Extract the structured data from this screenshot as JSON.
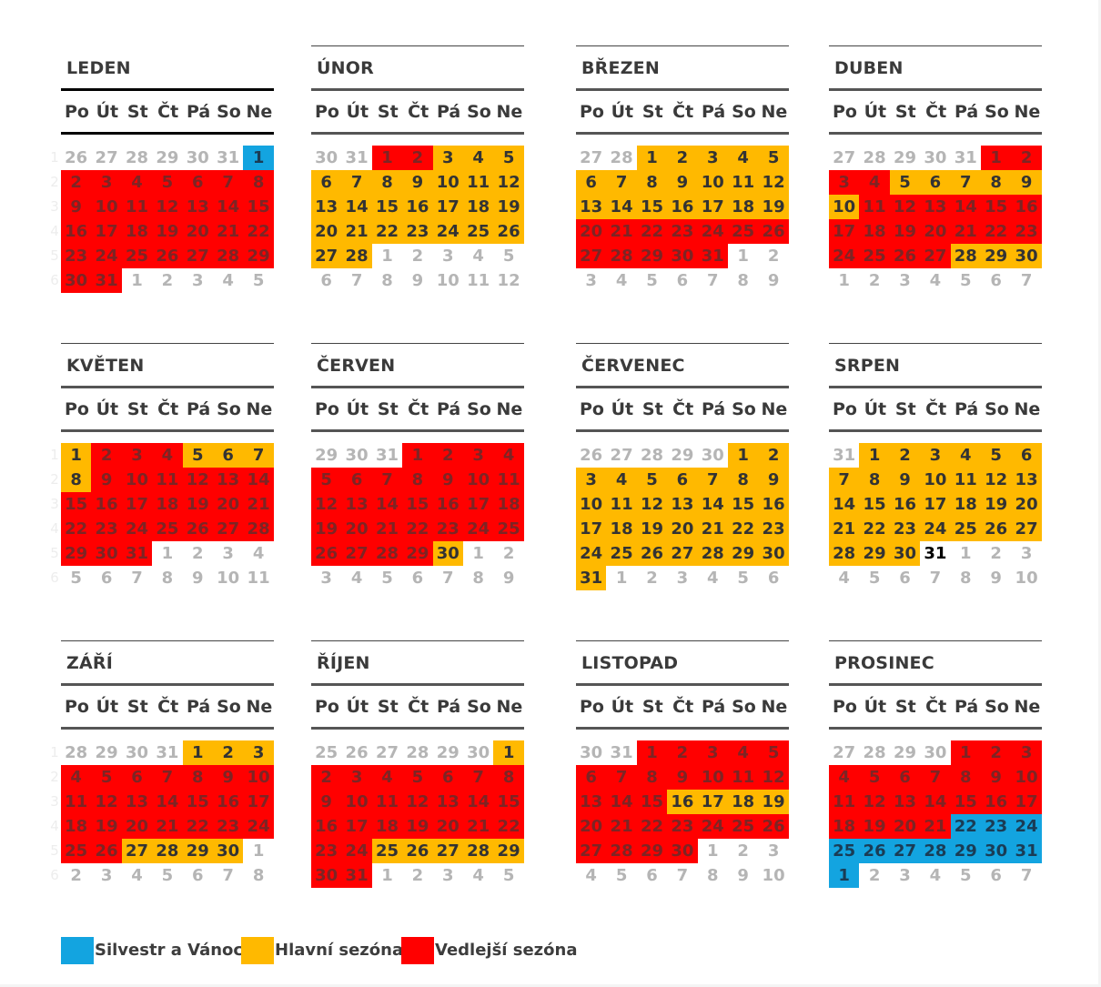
{
  "weekdays": [
    "Po",
    "Út",
    "St",
    "Čt",
    "Pá",
    "So",
    "Ne"
  ],
  "week_numbers": [
    "1",
    "2",
    "3",
    "4",
    "5",
    "6"
  ],
  "colors": {
    "red": "#ff0000",
    "yellow": "#ffb900",
    "blue": "#13a4e0"
  },
  "legend": [
    {
      "label": "Silvestr a Vánoce",
      "color": "blue"
    },
    {
      "label": "Hlavní sezóna",
      "color": "yellow"
    },
    {
      "label": "Vedlejší sezóna",
      "color": "red"
    }
  ],
  "months": [
    {
      "name": "LEDEN",
      "today": null,
      "days": [
        [
          "26o",
          "27o",
          "28o",
          "29o",
          "30o",
          "31o",
          "1b"
        ],
        [
          "2r",
          "3r",
          "4r",
          "5r",
          "6r",
          "7r",
          "8r"
        ],
        [
          "9r",
          "10r",
          "11r",
          "12r",
          "13r",
          "14r",
          "15r"
        ],
        [
          "16r",
          "17r",
          "18r",
          "19r",
          "20r",
          "21r",
          "22r"
        ],
        [
          "23r",
          "24r",
          "25r",
          "26r",
          "27r",
          "28r",
          "29r"
        ],
        [
          "30r",
          "31r",
          "1o",
          "2o",
          "3o",
          "4o",
          "5o"
        ]
      ]
    },
    {
      "name": "ÚNOR",
      "today": null,
      "days": [
        [
          "30o",
          "31o",
          "1r",
          "2r",
          "3y",
          "4y",
          "5y"
        ],
        [
          "6y",
          "7y",
          "8y",
          "9y",
          "10y",
          "11y",
          "12y"
        ],
        [
          "13y",
          "14y",
          "15y",
          "16y",
          "17y",
          "18y",
          "19y"
        ],
        [
          "20y",
          "21y",
          "22y",
          "23y",
          "24y",
          "25y",
          "26y"
        ],
        [
          "27y",
          "28y",
          "1o",
          "2o",
          "3o",
          "4o",
          "5o"
        ],
        [
          "6o",
          "7o",
          "8o",
          "9o",
          "10o",
          "11o",
          "12o"
        ]
      ]
    },
    {
      "name": "BŘEZEN",
      "today": null,
      "days": [
        [
          "27o",
          "28o",
          "1y",
          "2y",
          "3y",
          "4y",
          "5y"
        ],
        [
          "6y",
          "7y",
          "8y",
          "9y",
          "10y",
          "11y",
          "12y"
        ],
        [
          "13y",
          "14y",
          "15y",
          "16y",
          "17y",
          "18y",
          "19y"
        ],
        [
          "20r",
          "21r",
          "22r",
          "23r",
          "24r",
          "25r",
          "26r"
        ],
        [
          "27r",
          "28r",
          "29r",
          "30r",
          "31r",
          "1o",
          "2o"
        ],
        [
          "3o",
          "4o",
          "5o",
          "6o",
          "7o",
          "8o",
          "9o"
        ]
      ]
    },
    {
      "name": "DUBEN",
      "today": null,
      "days": [
        [
          "27o",
          "28o",
          "29o",
          "30o",
          "31o",
          "1r",
          "2r"
        ],
        [
          "3r",
          "4r",
          "5y",
          "6y",
          "7y",
          "8y",
          "9y"
        ],
        [
          "10y",
          "11r",
          "12r",
          "13r",
          "14r",
          "15r",
          "16r"
        ],
        [
          "17r",
          "18r",
          "19r",
          "20r",
          "21r",
          "22r",
          "23r"
        ],
        [
          "24r",
          "25r",
          "26r",
          "27r",
          "28y",
          "29y",
          "30y"
        ],
        [
          "1o",
          "2o",
          "3o",
          "4o",
          "5o",
          "6o",
          "7o"
        ]
      ]
    },
    {
      "name": "KVĚTEN",
      "today": null,
      "days": [
        [
          "1y",
          "2r",
          "3r",
          "4r",
          "5y",
          "6y",
          "7y"
        ],
        [
          "8y",
          "9r",
          "10r",
          "11r",
          "12r",
          "13r",
          "14r"
        ],
        [
          "15r",
          "16r",
          "17r",
          "18r",
          "19r",
          "20r",
          "21r"
        ],
        [
          "22r",
          "23r",
          "24r",
          "25r",
          "26r",
          "27r",
          "28r"
        ],
        [
          "29r",
          "30r",
          "31r",
          "1o",
          "2o",
          "3o",
          "4o"
        ],
        [
          "5o",
          "6o",
          "7o",
          "8o",
          "9o",
          "10o",
          "11o"
        ]
      ]
    },
    {
      "name": "ČERVEN",
      "today": null,
      "days": [
        [
          "29o",
          "30o",
          "31o",
          "1r",
          "2r",
          "3r",
          "4r"
        ],
        [
          "5r",
          "6r",
          "7r",
          "8r",
          "9r",
          "10r",
          "11r"
        ],
        [
          "12r",
          "13r",
          "14r",
          "15r",
          "16r",
          "17r",
          "18r"
        ],
        [
          "19r",
          "20r",
          "21r",
          "22r",
          "23r",
          "24r",
          "25r"
        ],
        [
          "26r",
          "27r",
          "28r",
          "29r",
          "30y",
          "1o",
          "2o"
        ],
        [
          "3o",
          "4o",
          "5o",
          "6o",
          "7o",
          "8o",
          "9o"
        ]
      ]
    },
    {
      "name": "ČERVENEC",
      "today": null,
      "days": [
        [
          "26o",
          "27o",
          "28o",
          "29o",
          "30o",
          "1y",
          "2y"
        ],
        [
          "3y",
          "4y",
          "5y",
          "6y",
          "7y",
          "8y",
          "9y"
        ],
        [
          "10y",
          "11y",
          "12y",
          "13y",
          "14y",
          "15y",
          "16y"
        ],
        [
          "17y",
          "18y",
          "19y",
          "20y",
          "21y",
          "22y",
          "23y"
        ],
        [
          "24y",
          "25y",
          "26y",
          "27y",
          "28y",
          "29y",
          "30y"
        ],
        [
          "31y",
          "1o",
          "2o",
          "3o",
          "4o",
          "5o",
          "6o"
        ]
      ]
    },
    {
      "name": "SRPEN",
      "today": "31",
      "days": [
        [
          "31o",
          "1y",
          "2y",
          "3y",
          "4y",
          "5y",
          "6y"
        ],
        [
          "7y",
          "8y",
          "9y",
          "10y",
          "11y",
          "12y",
          "13y"
        ],
        [
          "14y",
          "15y",
          "16y",
          "17y",
          "18y",
          "19y",
          "20y"
        ],
        [
          "21y",
          "22y",
          "23y",
          "24y",
          "25y",
          "26y",
          "27y"
        ],
        [
          "28y",
          "29y",
          "30y",
          "31t",
          "1o",
          "2o",
          "3o"
        ],
        [
          "4o",
          "5o",
          "6o",
          "7o",
          "8o",
          "9o",
          "10o"
        ]
      ]
    },
    {
      "name": "ZÁŘÍ",
      "today": null,
      "days": [
        [
          "28o",
          "29o",
          "30o",
          "31o",
          "1y",
          "2y",
          "3y"
        ],
        [
          "4r",
          "5r",
          "6r",
          "7r",
          "8r",
          "9r",
          "10r"
        ],
        [
          "11r",
          "12r",
          "13r",
          "14r",
          "15r",
          "16r",
          "17r"
        ],
        [
          "18r",
          "19r",
          "20r",
          "21r",
          "22r",
          "23r",
          "24r"
        ],
        [
          "25r",
          "26r",
          "27y",
          "28y",
          "29y",
          "30y",
          "1o"
        ],
        [
          "2o",
          "3o",
          "4o",
          "5o",
          "6o",
          "7o",
          "8o"
        ]
      ]
    },
    {
      "name": "ŘÍJEN",
      "today": null,
      "days": [
        [
          "25o",
          "26o",
          "27o",
          "28o",
          "29o",
          "30o",
          "1y"
        ],
        [
          "2r",
          "3r",
          "4r",
          "5r",
          "6r",
          "7r",
          "8r"
        ],
        [
          "9r",
          "10r",
          "11r",
          "12r",
          "13r",
          "14r",
          "15r"
        ],
        [
          "16r",
          "17r",
          "18r",
          "19r",
          "20r",
          "21r",
          "22r"
        ],
        [
          "23r",
          "24r",
          "25y",
          "26y",
          "27y",
          "28y",
          "29y"
        ],
        [
          "30r",
          "31r",
          "1o",
          "2o",
          "3o",
          "4o",
          "5o"
        ]
      ]
    },
    {
      "name": "LISTOPAD",
      "today": null,
      "days": [
        [
          "30o",
          "31o",
          "1r",
          "2r",
          "3r",
          "4r",
          "5r"
        ],
        [
          "6r",
          "7r",
          "8r",
          "9r",
          "10r",
          "11r",
          "12r"
        ],
        [
          "13r",
          "14r",
          "15r",
          "16y",
          "17y",
          "18y",
          "19y"
        ],
        [
          "20r",
          "21r",
          "22r",
          "23r",
          "24r",
          "25r",
          "26r"
        ],
        [
          "27r",
          "28r",
          "29r",
          "30r",
          "1o",
          "2o",
          "3o"
        ],
        [
          "4o",
          "5o",
          "6o",
          "7o",
          "8o",
          "9o",
          "10o"
        ]
      ]
    },
    {
      "name": "PROSINEC",
      "today": null,
      "days": [
        [
          "27o",
          "28o",
          "29o",
          "30o",
          "1r",
          "2r",
          "3r"
        ],
        [
          "4r",
          "5r",
          "6r",
          "7r",
          "8r",
          "9r",
          "10r"
        ],
        [
          "11r",
          "12r",
          "13r",
          "14r",
          "15r",
          "16r",
          "17r"
        ],
        [
          "18r",
          "19r",
          "20r",
          "21r",
          "22b",
          "23b",
          "24b"
        ],
        [
          "25b",
          "26b",
          "27b",
          "28b",
          "29b",
          "30b",
          "31b"
        ],
        [
          "1b",
          "2o",
          "3o",
          "4o",
          "5o",
          "6o",
          "7o"
        ]
      ]
    }
  ]
}
